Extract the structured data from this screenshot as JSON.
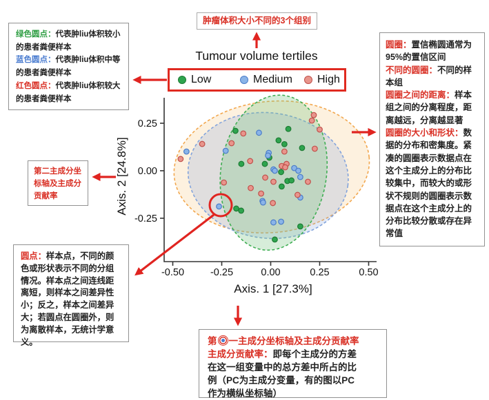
{
  "accent_red": "#e02420",
  "annotations": {
    "tumour_groups": {
      "text": "肿瘤体积大小不同的3个组别"
    },
    "groups_note": {
      "lines": [
        [
          {
            "t": "绿色圆点：",
            "c": "green"
          },
          {
            "t": "代表肿liu体积较小",
            "c": "k"
          }
        ],
        [
          {
            "t": "的患者粪便样本",
            "c": "k"
          }
        ],
        [
          {
            "t": "蓝色圆点：",
            "c": "blue"
          },
          {
            "t": "代表肿liu体积中等",
            "c": "k"
          }
        ],
        [
          {
            "t": "的患者粪便样本",
            "c": "k"
          }
        ],
        [
          {
            "t": "红色圆点：",
            "c": "red"
          },
          {
            "t": "代表肿liu体积较大",
            "c": "k"
          }
        ],
        [
          {
            "t": "的患者粪便样本",
            "c": "k"
          }
        ]
      ]
    },
    "circle_note": {
      "lines": [
        [
          {
            "t": "圆圈：",
            "c": "red"
          },
          {
            "t": "置信椭圆通常为95%的置信区间",
            "c": "k"
          }
        ],
        [
          {
            "t": "不同的圆圈：",
            "c": "red"
          },
          {
            "t": "不同的样本组",
            "c": "k"
          }
        ],
        [
          {
            "t": "圆圈之间的距离：",
            "c": "red"
          },
          {
            "t": "样本组之间的分离程度，距离越远，分离越显著",
            "c": "k"
          }
        ],
        [
          {
            "t": "圆圈的大小和形状：",
            "c": "red"
          },
          {
            "t": "数据的分布和密集度。紧凑的圆圈表示数据点在这个主成分上的分布比较集中，而较大的或形状不规则的圆圈表示数据点在这个主成分上的分布比较分散或存在异常值",
            "c": "k"
          }
        ]
      ]
    },
    "axis2_note": {
      "lines": [
        [
          {
            "t": "第二主成分坐标轴及主成分贡献率",
            "c": "red"
          }
        ]
      ]
    },
    "points_note": {
      "lines": [
        [
          {
            "t": "圆点：",
            "c": "red"
          },
          {
            "t": "样本点，不同的颜色或形状表示不同的分组情况。样本点之间连线距离短，则样本之间差异性小；反之，样本之间差异大；若圆点在圆圈外，则为离散样本，无统计学意义。",
            "c": "k"
          }
        ]
      ]
    },
    "axis1_note": {
      "line1_pre": "第",
      "line1_post": "一主成分坐标轴及主成分贡献率",
      "body": {
        "lines": [
          [
            {
              "t": "主成分贡献率：",
              "c": "red"
            },
            {
              "t": "即每个主成分的方差在这一组变量中的总方差中所占的比例（PC为主成分变量，有的图以PC作为横纵坐标轴）",
              "c": "k"
            }
          ]
        ]
      }
    }
  },
  "chart_data": {
    "type": "scatter",
    "title": "Tumour volume tertiles",
    "legend": [
      {
        "label": "Low",
        "x": 12,
        "fill": "#2ea44e",
        "stroke": "#1d7a33"
      },
      {
        "label": "Medium",
        "x": 102,
        "fill": "#8ab4e8",
        "stroke": "#4a7cc8"
      },
      {
        "label": "High",
        "x": 195,
        "fill": "#e8958c",
        "stroke": "#c0504a"
      }
    ],
    "x_axis": {
      "label": "Axis. 1 [27.3%]",
      "ticks": [
        "-0.50",
        "-0.25",
        "0.00",
        "0.25",
        "0.50"
      ],
      "tick_values": [
        -0.5,
        -0.25,
        0,
        0.25,
        0.5
      ],
      "range": [
        -0.55,
        0.55
      ]
    },
    "y_axis": {
      "label": "Axis. 2 [24.8%]",
      "ticks": [
        "0.25",
        "0.00",
        "-0.25"
      ],
      "tick_values": [
        0.25,
        0,
        -0.25
      ],
      "range": [
        -0.4,
        0.39
      ]
    },
    "ellipses": [
      {
        "group": "High",
        "cx": 0.005,
        "cy": 0.02,
        "rx": 0.5,
        "ry": 0.345,
        "rot": -6,
        "stroke": "#f2a74e",
        "fill": "rgba(246,189,110,0.22)"
      },
      {
        "group": "Medium",
        "cx": -0.013,
        "cy": -0.025,
        "rx": 0.41,
        "ry": 0.33,
        "rot": 7,
        "stroke": "#82a3dc",
        "fill": "rgba(141,168,220,0.25)"
      },
      {
        "group": "Low",
        "cx": 0.015,
        "cy": -0.01,
        "rx": 0.27,
        "ry": 0.41,
        "rot": 8,
        "stroke": "#3fae53",
        "fill": "rgba(120,195,130,0.30)"
      }
    ],
    "series": [
      {
        "name": "Low",
        "fill": "#2ea44e",
        "stroke": "#1d7a33",
        "points": [
          [
            -0.18,
            0.21
          ],
          [
            0.09,
            0.22
          ],
          [
            0.04,
            0.16
          ],
          [
            0.07,
            0.14
          ],
          [
            0.16,
            0.12
          ],
          [
            -0.15,
            0.036
          ],
          [
            -0.03,
            0.036
          ],
          [
            -0.007,
            0.069
          ],
          [
            0.053,
            -0.007
          ],
          [
            0.085,
            -0.054
          ],
          [
            0.106,
            -0.051
          ],
          [
            0.056,
            -0.083
          ],
          [
            -0.176,
            -0.199
          ],
          [
            -0.151,
            -0.21
          ],
          [
            0.151,
            -0.293
          ],
          [
            0.021,
            -0.362
          ]
        ]
      },
      {
        "name": "Medium",
        "fill": "#8ab4e8",
        "stroke": "#4a7cc8",
        "points": [
          [
            -0.06,
            0.2
          ],
          [
            -0.43,
            0.101
          ],
          [
            -0.23,
            0.105
          ],
          [
            -0.01,
            0.094
          ],
          [
            -0.014,
            0.08
          ],
          [
            0.014,
            0.007
          ],
          [
            0.021,
            0.0
          ],
          [
            0.12,
            0.014
          ],
          [
            0.141,
            0.0
          ],
          [
            0.151,
            -0.033
          ],
          [
            -0.042,
            -0.159
          ],
          [
            0.151,
            -0.141
          ],
          [
            -0.264,
            -0.188
          ],
          [
            0.014,
            -0.272
          ],
          [
            0.053,
            -0.268
          ],
          [
            -0.039,
            -0.167
          ]
        ]
      },
      {
        "name": "High",
        "fill": "#e8958c",
        "stroke": "#c0504a",
        "points": [
          [
            -0.14,
            0.196
          ],
          [
            0.22,
            0.293
          ],
          [
            0.21,
            0.264
          ],
          [
            0.25,
            0.217
          ],
          [
            -0.35,
            0.141
          ],
          [
            -0.46,
            0.062
          ],
          [
            -0.2,
            0.145
          ],
          [
            0.07,
            0.101
          ],
          [
            0.225,
            0.116
          ],
          [
            -0.105,
            0.051
          ],
          [
            0.056,
            0.025
          ],
          [
            0.081,
            0.036
          ],
          [
            0.074,
            0.018
          ],
          [
            0.19,
            -0.058
          ],
          [
            0.014,
            -0.058
          ],
          [
            -0.028,
            -0.036
          ],
          [
            -0.102,
            -0.091
          ],
          [
            -0.049,
            -0.12
          ],
          [
            0.137,
            -0.127
          ],
          [
            -0.239,
            -0.062
          ],
          [
            0.011,
            -0.17
          ]
        ]
      }
    ],
    "highlighted_point": {
      "group": "Medium",
      "x": -0.264,
      "y": -0.188
    }
  }
}
